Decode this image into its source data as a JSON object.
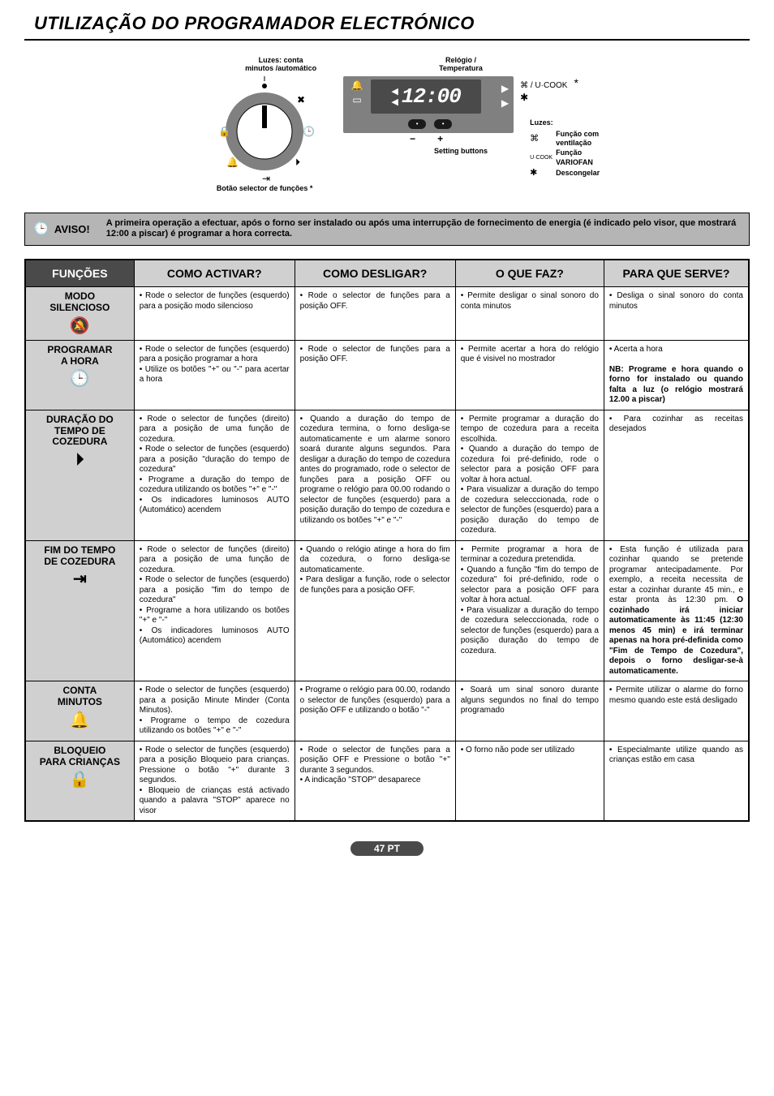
{
  "title": "UTILIZAÇÃO DO PROGRAMADOR ELECTRÓNICO",
  "diagram": {
    "label_left_top": "Luzes: conta\nminutos /automático",
    "label_right_top": "Relógio /\nTemperatura",
    "clock_value": "12:00",
    "label_setting_buttons": "Setting buttons",
    "label_bottom": "Botão selector de funções *",
    "legend_title": "Luzes:",
    "legend_1": "Função com ventilação",
    "legend_2": "Função VARIOFAN",
    "legend_3": "Descongelar",
    "legend_sym_1": "⌘",
    "legend_sym_2": "U·COOK",
    "legend_sym_3": "✱",
    "side_sym_top": "⌘ / U·COOK",
    "side_sym_bot": "✱",
    "minus": "−",
    "plus": "+",
    "star": "*"
  },
  "aviso": {
    "label": "AVISO!",
    "text": "A primeira operação a efectuar, após o forno ser instalado ou após uma interrupção de fornecimento de energia (é indicado pelo visor, que mostrará 12:00 a piscar) é programar a hora correcta."
  },
  "table": {
    "headers": {
      "c1": "FUNÇÕES",
      "c2": "COMO ACTIVAR?",
      "c3": "COMO DESLIGAR?",
      "c4": "O QUE FAZ?",
      "c5": "PARA QUE SERVE?"
    },
    "rows": [
      {
        "func": "MODO\nSILENCIOSO",
        "icon": "🔕",
        "c2": "• Rode o selector de funções (esquerdo) para a posição modo silencioso",
        "c3": "• Rode o selector de funções para a posição OFF.",
        "c4": "• Permite desligar o sinal sonoro do conta minutos",
        "c5": "• Desliga o sinal sonoro do conta minutos"
      },
      {
        "func": "PROGRAMAR\nA HORA",
        "icon": "🕒",
        "c2": "• Rode o selector de funções (esquerdo) para a posição programar a hora\n• Utilize os botões \"+\" ou \"-\" para acertar a hora",
        "c3": "• Rode o selector de funções para a posição OFF.",
        "c4": "• Permite acertar a hora do relógio que é visivel no mostrador",
        "c5": "• Acerta a hora\n\nNB: Programe e hora quando o forno for instalado ou quando falta a luz (o relógio mostrará 12.00 a piscar)"
      },
      {
        "func": "DURAÇÃO DO\nTEMPO DE\nCOZEDURA",
        "icon": "⏵",
        "c2": "• Rode o selector de funções (direito) para a posição de uma função de cozedura.\n• Rode o selector de funções (esquerdo) para a posição \"duração do tempo de cozedura\"\n• Programe a duração do tempo de cozedura utilizando os botões \"+\" e \"-\"\n• Os indicadores luminosos AUTO (Automático) acendem",
        "c3": "• Quando a duração do tempo de cozedura termina, o forno desliga-se automaticamente e um alarme sonoro soará durante alguns segundos. Para desligar a duração do tempo de cozedura antes do programado, rode o selector de funções para a posição OFF ou programe o relógio para 00.00 rodando o selector de funções (esquerdo) para a posição duração do tempo de cozedura e utilizando os botões \"+\" e \"-\"",
        "c4": "• Permite programar a duração do tempo de cozedura para a receita escolhida.\n• Quando a duração do tempo de cozedura foi pré-definido, rode o selector para a posição OFF para voltar à hora actual.\n• Para visualizar a duração do tempo de cozedura selecccionada, rode o selector de funções (esquerdo) para a posição duração do tempo de cozedura.",
        "c5": "• Para cozinhar as receitas desejados"
      },
      {
        "func": "FIM DO TEMPO\nDE COZEDURA",
        "icon": "⇥",
        "c2": "• Rode o selector de funções (direito) para a posição de uma função de cozedura.\n• Rode o selector de funções (esquerdo) para a posição \"fim do tempo de cozedura\"\n• Programe a hora utilizando os botões \"+\" e \"-\"\n• Os indicadores luminosos AUTO (Automático) acendem",
        "c3": "• Quando o relógio atinge a hora do fim da cozedura, o forno desliga-se automaticamente.\n• Para desligar a função, rode o selector de funções para a posição OFF.",
        "c4": "• Permite programar a hora de terminar a cozedura pretendida.\n• Quando a função \"fim do tempo de cozedura\" foi pré-definido, rode o selector para a posição OFF para voltar à hora actual.\n• Para visualizar a duração do tempo de cozedura selecccionada, rode o selector de funções (esquerdo) para a posição duração do tempo de cozedura.",
        "c5": "• Esta função é utilizada para cozinhar quando se pretende programar antecipadamente. Por exemplo, a receita necessita de estar a cozinhar durante 45 min., e estar pronta às 12:30 pm. O cozinhado irá iniciar automaticamente às 11:45 (12:30 menos 45 min) e irá terminar apenas na hora pré-definida como \"Fim de Tempo de Cozedura\", depois o forno desligar-se-à automaticamente."
      },
      {
        "func": "CONTA\nMINUTOS",
        "icon": "🔔",
        "c2": "• Rode o selector de funções (esquerdo) para a posição Minute Minder (Conta Minutos).\n• Programe o tempo de cozedura utilizando os botões \"+\" e \"-\"",
        "c3": "• Programe o relógio para 00.00, rodando o selector de funções (esquerdo) para a posição OFF e utilizando o botão \"-\"",
        "c4": "• Soará um sinal sonoro durante alguns segundos no final do tempo programado",
        "c5": "• Permite utilizar o alarme do forno mesmo quando este está desligado"
      },
      {
        "func": "BLOQUEIO\nPARA CRIANÇAS",
        "icon": "🔒",
        "c2": "• Rode o selector de funções (esquerdo) para a posição Bloqueio para crianças. Pressione o botão \"+\" durante 3 segundos.\n• Bloqueio de crianças está activado quando a palavra \"STOP\" aparece no visor",
        "c3": "• Rode o selector de funções para a posição OFF e Pressione o botão \"+\" durante 3 segundos.\n• A indicação \"STOP\" desaparece",
        "c4": "• O forno não pode ser utilizado",
        "c5": "• Especialmante utilize quando as crianças estão em casa"
      }
    ]
  },
  "footer": "47 PT"
}
